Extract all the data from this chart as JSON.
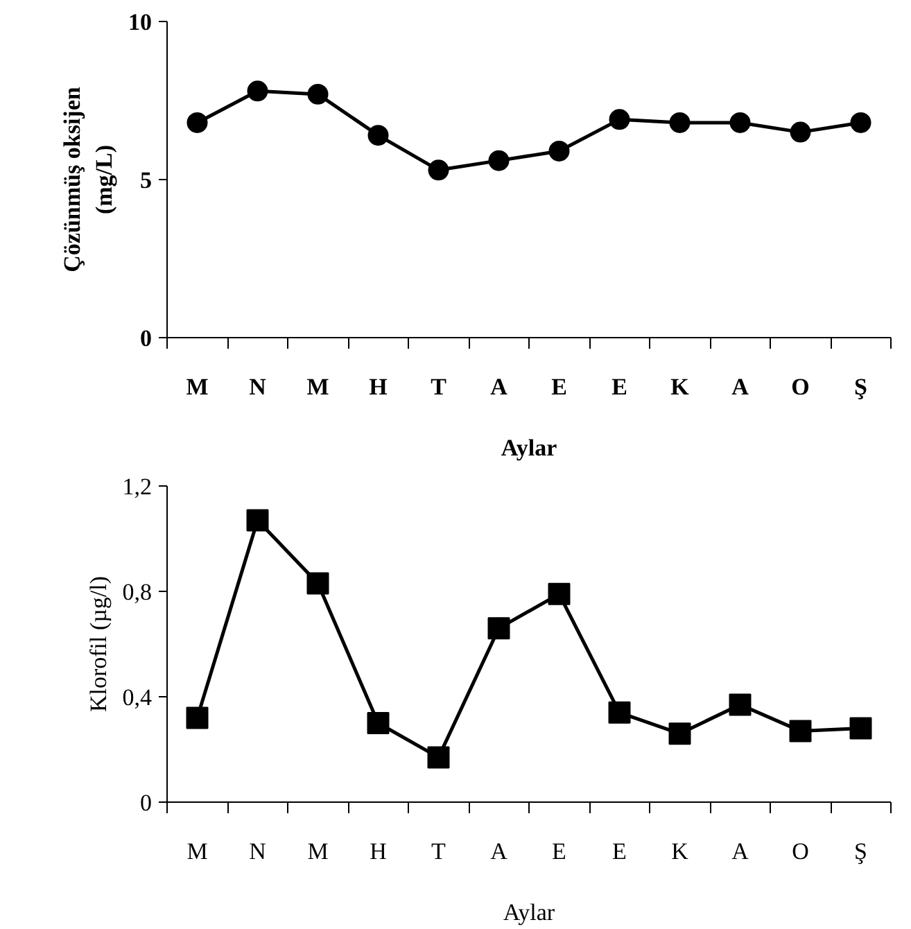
{
  "chart_data": [
    {
      "type": "line",
      "xlabel": "Aylar",
      "ylabel": "Çözünmüş oksijen\n(mg/L)",
      "categories": [
        "M",
        "N",
        "M",
        "H",
        "T",
        "A",
        "E",
        "E",
        "K",
        "A",
        "O",
        "Ş"
      ],
      "series": [
        {
          "color": "#000000",
          "values": [
            6.8,
            7.8,
            7.7,
            6.4,
            5.3,
            5.6,
            5.9,
            6.9,
            6.8,
            6.8,
            6.5,
            6.8
          ]
        }
      ],
      "marker": "circle",
      "ylim": [
        0,
        10
      ],
      "yticks": [
        0,
        5,
        10
      ],
      "grid": false
    },
    {
      "type": "line",
      "xlabel": "Aylar",
      "ylabel": "Klorofil (µg/l)",
      "categories": [
        "M",
        "N",
        "M",
        "H",
        "T",
        "A",
        "E",
        "E",
        "K",
        "A",
        "O",
        "Ş"
      ],
      "series": [
        {
          "color": "#000000",
          "values": [
            0.32,
            1.07,
            0.83,
            0.3,
            0.17,
            0.66,
            0.79,
            0.34,
            0.26,
            0.37,
            0.27,
            0.28
          ]
        }
      ],
      "marker": "square",
      "ylim": [
        0,
        1.2
      ],
      "yticks": [
        {
          "value": 0,
          "label": "0"
        },
        {
          "value": 0.4,
          "label": "0,4"
        },
        {
          "value": 0.8,
          "label": "0,8"
        },
        {
          "value": 1.2,
          "label": "1,2"
        }
      ],
      "grid": false
    }
  ]
}
